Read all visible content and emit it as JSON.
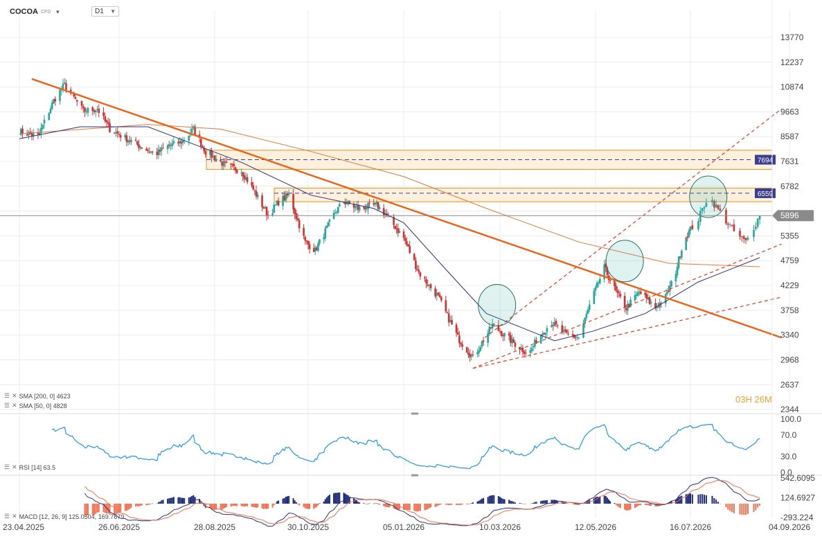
{
  "header": {
    "symbol": "COCOA",
    "symbol_suffix": "CFD",
    "timeframe": "D1"
  },
  "countdown": {
    "h": "03",
    "h_unit": "H",
    "m": "26",
    "m_unit": "M"
  },
  "legends": {
    "sma200": "SMA [200, 0] 4623",
    "sma50": "SMA [50, 0] 4828",
    "rsi": "RSI [14] 63.5",
    "macd": "MACD [12, 26, 9] 125.0504, 169.7679"
  },
  "chart_data": [
    {
      "type": "candlestick",
      "price_axis_ticks": [
        "13770",
        "12237",
        "10874",
        "9663",
        "8587",
        "7631",
        "6782",
        "6026",
        "5355",
        "4759",
        "4229",
        "3758",
        "3340",
        "2968",
        "2637",
        "2344"
      ],
      "x_ticks": [
        "23.04.2025",
        "26.06.2025",
        "28.08.2025",
        "30.10.2025",
        "05.01.2026",
        "10.03.2026",
        "12.05.2026",
        "16.07.2026",
        "04.09.2026"
      ],
      "log_scale": true,
      "current_price": 5896,
      "levels": [
        {
          "label": "7694",
          "value": 7694,
          "zone": [
            7350,
            8050
          ]
        },
        {
          "label": "6559",
          "value": 6559,
          "zone": [
            6300,
            6720
          ]
        }
      ],
      "price_path": [
        [
          "23.04.2025",
          8800
        ],
        [
          "05.05.2025",
          8600
        ],
        [
          "15.05.2025",
          10200
        ],
        [
          "22.05.2025",
          11000
        ],
        [
          "03.06.2025",
          9700
        ],
        [
          "12.06.2025",
          9800
        ],
        [
          "20.06.2025",
          8900
        ],
        [
          "01.07.2025",
          8500
        ],
        [
          "10.07.2025",
          8200
        ],
        [
          "20.07.2025",
          7900
        ],
        [
          "28.07.2025",
          8200
        ],
        [
          "07.08.2025",
          8400
        ],
        [
          "14.08.2025",
          8900
        ],
        [
          "22.08.2025",
          8000
        ],
        [
          "04.09.2025",
          7500
        ],
        [
          "15.09.2025",
          7300
        ],
        [
          "24.09.2025",
          6600
        ],
        [
          "03.10.2025",
          5900
        ],
        [
          "10.10.2025",
          6300
        ],
        [
          "17.10.2025",
          6500
        ],
        [
          "28.10.2025",
          5200
        ],
        [
          "04.11.2025",
          5000
        ],
        [
          "18.11.2025",
          6000
        ],
        [
          "24.11.2025",
          6300
        ],
        [
          "04.12.2025",
          6100
        ],
        [
          "17.12.2025",
          6200
        ],
        [
          "24.12.2025",
          5900
        ],
        [
          "05.01.2026",
          5300
        ],
        [
          "15.01.2026",
          4500
        ],
        [
          "28.01.2026",
          4000
        ],
        [
          "10.02.2026",
          3300
        ],
        [
          "20.02.2026",
          3000
        ],
        [
          "28.02.2026",
          3300
        ],
        [
          "05.03.2026",
          3500
        ],
        [
          "20.03.2026",
          3200
        ],
        [
          "29.03.2026",
          3050
        ],
        [
          "04.04.2026",
          3300
        ],
        [
          "13.04.2026",
          3550
        ],
        [
          "22.04.2026",
          3350
        ],
        [
          "01.05.2026",
          3300
        ],
        [
          "10.05.2026",
          4000
        ],
        [
          "18.05.2026",
          4600
        ],
        [
          "26.05.2026",
          4100
        ],
        [
          "02.06.2026",
          3800
        ],
        [
          "11.06.2026",
          4100
        ],
        [
          "22.06.2026",
          3800
        ],
        [
          "29.06.2026",
          4000
        ],
        [
          "05.07.2026",
          4400
        ],
        [
          "11.07.2026",
          5200
        ],
        [
          "20.07.2026",
          5800
        ],
        [
          "25.07.2026",
          6500
        ],
        [
          "01.08.2026",
          5900
        ],
        [
          "08.08.2026",
          5400
        ],
        [
          "13.08.2026",
          5200
        ],
        [
          "20.08.2026",
          5896
        ]
      ],
      "sma200": [
        [
          "23.04.2025",
          8700
        ],
        [
          "15.07.2025",
          9100
        ],
        [
          "01.09.2025",
          8900
        ],
        [
          "01.11.2025",
          8000
        ],
        [
          "05.01.2026",
          7100
        ],
        [
          "01.03.2026",
          6100
        ],
        [
          "01.05.2026",
          5200
        ],
        [
          "01.07.2026",
          4700
        ],
        [
          "20.08.2026",
          4623
        ]
      ],
      "sma50": [
        [
          "23.04.2025",
          8500
        ],
        [
          "01.06.2025",
          9000
        ],
        [
          "15.07.2025",
          9000
        ],
        [
          "15.09.2025",
          7600
        ],
        [
          "01.11.2025",
          6500
        ],
        [
          "15.12.2025",
          6100
        ],
        [
          "05.01.2026",
          5700
        ],
        [
          "01.02.2026",
          4600
        ],
        [
          "01.03.2026",
          3700
        ],
        [
          "15.04.2026",
          3250
        ],
        [
          "10.05.2026",
          3400
        ],
        [
          "15.06.2026",
          3700
        ],
        [
          "20.07.2026",
          4300
        ],
        [
          "20.08.2026",
          4828
        ]
      ],
      "trendlines": [
        {
          "style": "solid",
          "from": [
            "01.05.2025",
            11300
          ],
          "to": [
            "31.08.2026",
            3300
          ]
        },
        {
          "style": "dashed",
          "from": [
            "28.02.2026",
            3300
          ],
          "to": [
            "31.08.2026",
            9800
          ]
        },
        {
          "style": "dashed",
          "from": [
            "20.02.2026",
            2850
          ],
          "to": [
            "31.08.2026",
            5150
          ]
        },
        {
          "style": "dashed",
          "from": [
            "20.02.2026",
            2850
          ],
          "to": [
            "31.08.2026",
            4000
          ]
        }
      ]
    },
    {
      "type": "line",
      "name": "RSI [14]",
      "y_ticks": [
        "100.0",
        "70.0",
        "30.0",
        "0.0"
      ],
      "ylim": [
        0,
        100
      ],
      "last_value": 63.5
    },
    {
      "type": "bar",
      "name": "MACD [12, 26, 9]",
      "y_ticks": [
        "542.6095",
        "124.6927",
        "-293.224"
      ],
      "macd": 125.0504,
      "signal": 169.7679
    }
  ],
  "colors": {
    "up": "#26a69a",
    "down": "#d32f2f",
    "trend": "#e8661a",
    "sma200": "#e8783a",
    "sma50": "#2c2f7a",
    "rsi": "#2196f3",
    "zone_fill": "#fdf0dc",
    "zone_edge": "#e8902a",
    "level_tag": "#3d3d8f",
    "price_tag": "#8a8a8a",
    "macd_pos": "#1c2a78",
    "macd_neg": "#f07050"
  }
}
